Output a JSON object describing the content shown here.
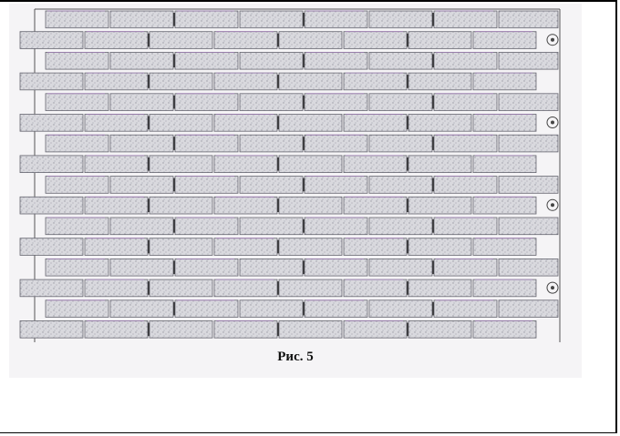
{
  "figure": {
    "caption": "Рис. 5",
    "content": "brick-wall-pattern",
    "colors": {
      "brick_fill": "#d2d2d8",
      "brick_outline": "#666670",
      "mortar": "#f5f4f6",
      "tie": "#222222"
    }
  }
}
